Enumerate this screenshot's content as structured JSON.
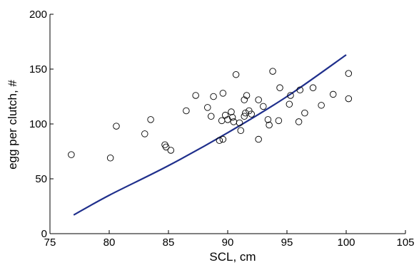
{
  "chart_data": {
    "type": "scatter",
    "title": "",
    "xlabel": "SCL, cm",
    "ylabel": "egg per clutch, #",
    "xlim": [
      75,
      105
    ],
    "ylim": [
      0,
      200
    ],
    "xticks": [
      75,
      80,
      85,
      90,
      95,
      100,
      105
    ],
    "yticks": [
      0,
      50,
      100,
      150,
      200
    ],
    "xtick_labels": [
      "75",
      "80",
      "85",
      "90",
      "95",
      "100",
      "105"
    ],
    "ytick_labels": [
      "0",
      "50",
      "100",
      "150",
      "200"
    ],
    "grid": false,
    "series": [
      {
        "kind": "points",
        "marker": "open-circle",
        "color": "#000000",
        "points": [
          {
            "x": 76.8,
            "y": 72
          },
          {
            "x": 80.1,
            "y": 69
          },
          {
            "x": 80.6,
            "y": 98
          },
          {
            "x": 83.0,
            "y": 91
          },
          {
            "x": 83.5,
            "y": 104
          },
          {
            "x": 84.7,
            "y": 81
          },
          {
            "x": 84.8,
            "y": 79
          },
          {
            "x": 85.2,
            "y": 76
          },
          {
            "x": 86.5,
            "y": 112
          },
          {
            "x": 87.3,
            "y": 126
          },
          {
            "x": 88.3,
            "y": 115
          },
          {
            "x": 88.6,
            "y": 107
          },
          {
            "x": 88.8,
            "y": 125
          },
          {
            "x": 89.3,
            "y": 85
          },
          {
            "x": 89.6,
            "y": 86
          },
          {
            "x": 89.6,
            "y": 128
          },
          {
            "x": 89.5,
            "y": 103
          },
          {
            "x": 89.8,
            "y": 108
          },
          {
            "x": 90.0,
            "y": 104
          },
          {
            "x": 90.3,
            "y": 111
          },
          {
            "x": 90.4,
            "y": 106
          },
          {
            "x": 90.5,
            "y": 102
          },
          {
            "x": 90.7,
            "y": 145
          },
          {
            "x": 91.0,
            "y": 101
          },
          {
            "x": 91.1,
            "y": 94
          },
          {
            "x": 91.4,
            "y": 107
          },
          {
            "x": 91.5,
            "y": 110
          },
          {
            "x": 91.4,
            "y": 122
          },
          {
            "x": 91.6,
            "y": 126
          },
          {
            "x": 91.8,
            "y": 112
          },
          {
            "x": 92.0,
            "y": 109
          },
          {
            "x": 92.6,
            "y": 122
          },
          {
            "x": 92.6,
            "y": 86
          },
          {
            "x": 93.0,
            "y": 116
          },
          {
            "x": 93.4,
            "y": 104
          },
          {
            "x": 93.5,
            "y": 99
          },
          {
            "x": 93.8,
            "y": 148
          },
          {
            "x": 94.3,
            "y": 103
          },
          {
            "x": 94.4,
            "y": 133
          },
          {
            "x": 95.2,
            "y": 118
          },
          {
            "x": 95.3,
            "y": 126
          },
          {
            "x": 96.0,
            "y": 102
          },
          {
            "x": 96.1,
            "y": 131
          },
          {
            "x": 96.5,
            "y": 110
          },
          {
            "x": 97.2,
            "y": 133
          },
          {
            "x": 97.9,
            "y": 117
          },
          {
            "x": 98.9,
            "y": 127
          },
          {
            "x": 100.2,
            "y": 123
          },
          {
            "x": 100.2,
            "y": 146
          }
        ]
      },
      {
        "kind": "curve",
        "color": "#1f2f8c",
        "points": [
          {
            "x": 77,
            "y": 17
          },
          {
            "x": 80,
            "y": 35
          },
          {
            "x": 85,
            "y": 62
          },
          {
            "x": 90,
            "y": 92
          },
          {
            "x": 95,
            "y": 125
          },
          {
            "x": 100,
            "y": 163
          }
        ]
      }
    ]
  }
}
